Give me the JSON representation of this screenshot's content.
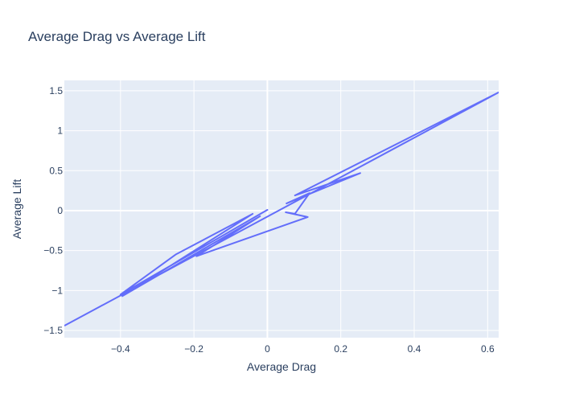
{
  "chart_data": {
    "type": "line",
    "title": "Average Drag vs Average Lift",
    "xlabel": "Average Drag",
    "ylabel": "Average Lift",
    "xlim": [
      -0.553,
      0.63
    ],
    "ylim": [
      -1.59,
      1.63
    ],
    "grid": true,
    "legend": "none",
    "x_ticks": [
      -0.4,
      -0.2,
      0,
      0.2,
      0.4,
      0.6
    ],
    "x_tick_labels": [
      "−0.4",
      "−0.2",
      "0",
      "0.2",
      "0.4",
      "0.6"
    ],
    "y_ticks": [
      -1.5,
      -1,
      -0.5,
      0,
      0.5,
      1,
      1.5
    ],
    "y_tick_labels": [
      "−1.5",
      "−1",
      "−0.5",
      "0",
      "0.5",
      "1",
      "1.5"
    ],
    "colors": {
      "line": "#636efa",
      "plot_bg": "#e5ecf6",
      "grid": "#ffffff",
      "text": "#2a3f5f"
    },
    "series": [
      {
        "x": [
          -0.553,
          0.63,
          0.075,
          0.253,
          0.052,
          0.115,
          0.075,
          0.05,
          0.11,
          -0.193,
          -0.02,
          -0.395,
          -0.04,
          -0.25,
          -0.4,
          0.0,
          0.0
        ],
        "y": [
          -1.44,
          1.48,
          0.19,
          0.47,
          0.09,
          0.22,
          -0.04,
          -0.02,
          -0.08,
          -0.57,
          -0.07,
          -1.07,
          -0.04,
          -0.55,
          -1.05,
          0.01,
          0.0
        ]
      }
    ]
  }
}
